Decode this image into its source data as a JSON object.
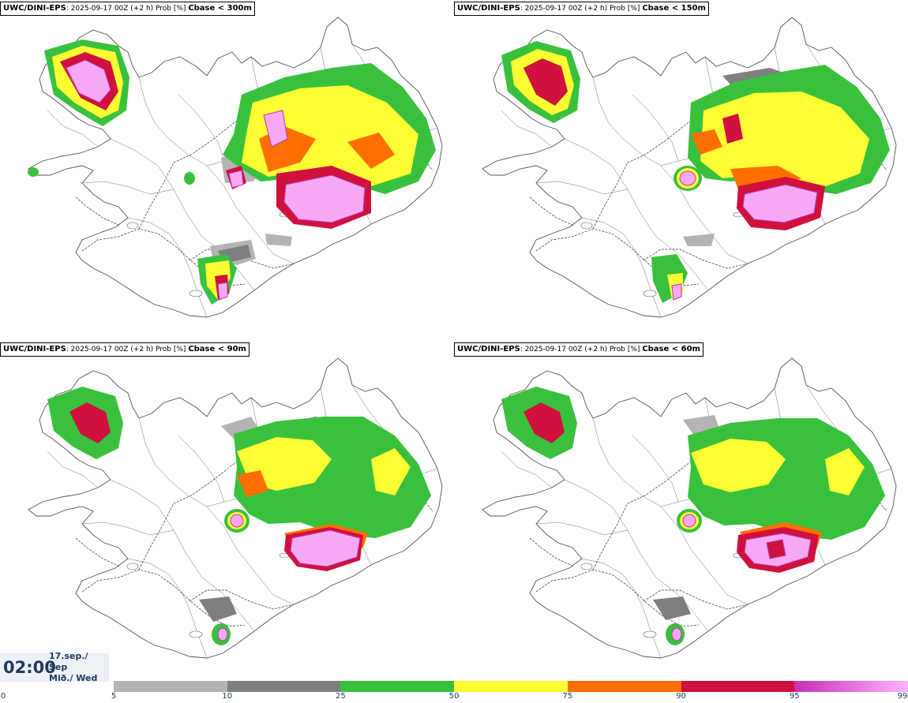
{
  "panels": [
    {
      "model": "UWC/DINI-EPS",
      "info": ": 2025-09-17 00Z (+2 h) Prob [%] ",
      "variable": "Cbase < 300m"
    },
    {
      "model": "UWC/DINI-EPS",
      "info": ": 2025-09-17 00Z (+2 h) Prob [%] ",
      "variable": "Cbase < 150m"
    },
    {
      "model": "UWC/DINI-EPS",
      "info": ": 2025-09-17 00Z (+2 h) Prob [%] ",
      "variable": "Cbase < 90m"
    },
    {
      "model": "UWC/DINI-EPS",
      "info": ": 2025-09-17 00Z (+2 h) Prob [%] ",
      "variable": "Cbase < 60m"
    }
  ],
  "time": {
    "clock": "02:00",
    "date_line1": "17.sep./ Sep",
    "date_line2": "Mið./ Wed"
  },
  "legend": {
    "ticks": [
      "0",
      "5",
      "10",
      "25",
      "50",
      "75",
      "90",
      "95",
      "99"
    ],
    "colors": [
      {
        "from": "#b4b4b4",
        "to": "#b4b4b4"
      },
      {
        "from": "#7f7f7f",
        "to": "#7f7f7f"
      },
      {
        "from": "#39c13d",
        "to": "#39c13d"
      },
      {
        "from": "#ffff33",
        "to": "#ffff33"
      },
      {
        "from": "#ff6e00",
        "to": "#ff6e00"
      },
      {
        "from": "#d0103d",
        "to": "#d0103d"
      },
      {
        "from": "#c72fb5",
        "to": "#ffb3ff"
      }
    ]
  }
}
